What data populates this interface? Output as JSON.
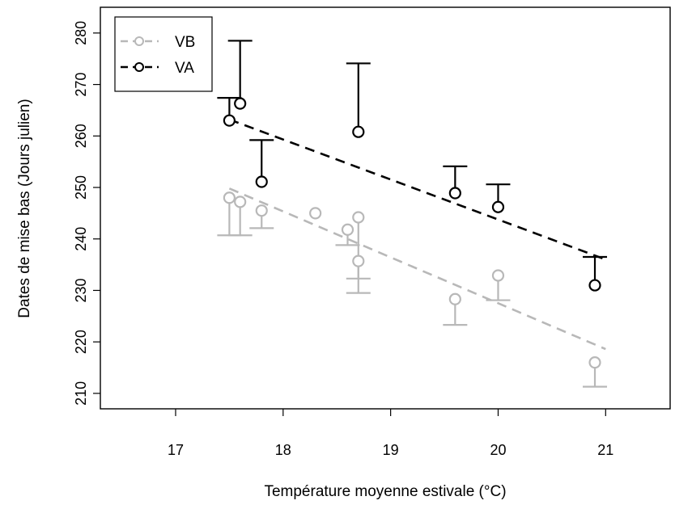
{
  "chart_data": {
    "type": "scatter",
    "title": "",
    "xlabel": "Température moyenne estivale (°C)",
    "ylabel": "Dates de mise bas (Jours julien)",
    "xlim": [
      16.3,
      21.6
    ],
    "ylim": [
      207,
      285
    ],
    "xticks": [
      "17",
      "18",
      "19",
      "20",
      "21"
    ],
    "yticks": [
      "210",
      "220",
      "230",
      "240",
      "250",
      "260",
      "270",
      "280"
    ],
    "grid": false,
    "legend_position": "top-left",
    "series": [
      {
        "name": "VB",
        "color": "#b8b8b8",
        "marker": "open-circle",
        "error_direction": "down",
        "points": [
          {
            "x": 17.5,
            "y": 248,
            "err_end": 240.7
          },
          {
            "x": 17.6,
            "y": 247.2,
            "err_end": 240.7
          },
          {
            "x": 17.8,
            "y": 245.5,
            "err_end": 242.1
          },
          {
            "x": 18.3,
            "y": 245,
            "err_end": null
          },
          {
            "x": 18.6,
            "y": 241.8,
            "err_end": 238.8
          },
          {
            "x": 18.7,
            "y": 244.2,
            "err_end": 229.5
          },
          {
            "x": 18.7,
            "y": 235.7,
            "err_end": 232.3
          },
          {
            "x": 19.6,
            "y": 228.3,
            "err_end": 223.3
          },
          {
            "x": 20.0,
            "y": 232.9,
            "err_end": 228.1
          },
          {
            "x": 20.9,
            "y": 216,
            "err_end": 211.3
          }
        ],
        "trend": {
          "x": [
            17.5,
            21.0
          ],
          "y": [
            249.8,
            218.6
          ]
        }
      },
      {
        "name": "VA",
        "color": "#000000",
        "marker": "open-circle",
        "error_direction": "up",
        "points": [
          {
            "x": 17.5,
            "y": 263,
            "err_end": 267.4
          },
          {
            "x": 17.6,
            "y": 266.3,
            "err_end": 278.5
          },
          {
            "x": 17.8,
            "y": 251.1,
            "err_end": 259.2
          },
          {
            "x": 18.7,
            "y": 260.8,
            "err_end": 274.1
          },
          {
            "x": 19.6,
            "y": 248.9,
            "err_end": 254.1
          },
          {
            "x": 20.0,
            "y": 246.2,
            "err_end": 250.6
          },
          {
            "x": 20.9,
            "y": 231,
            "err_end": 236.5
          }
        ],
        "trend": {
          "x": [
            17.5,
            21.0
          ],
          "y": [
            263.2,
            236.0
          ]
        }
      }
    ]
  }
}
